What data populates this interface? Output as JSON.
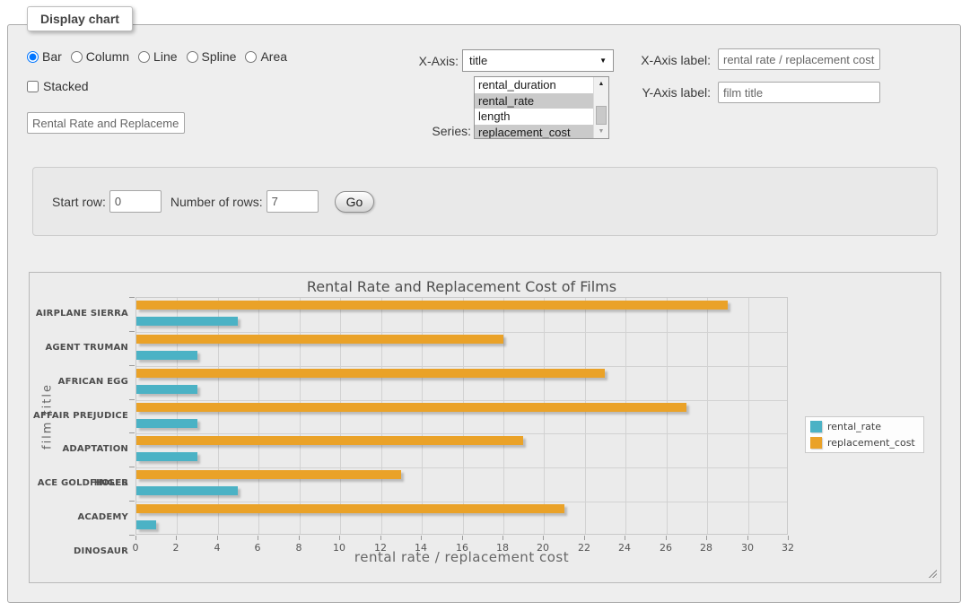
{
  "panel": {
    "legend": "Display chart"
  },
  "chart_type": {
    "options": [
      "Bar",
      "Column",
      "Line",
      "Spline",
      "Area"
    ],
    "selected": "Bar"
  },
  "stacked": {
    "label": "Stacked",
    "checked": false
  },
  "title_input": {
    "value": "Rental Rate and Replacement Cost of Films"
  },
  "x_axis_select": {
    "label": "X-Axis:",
    "selected": "title"
  },
  "series_select": {
    "label": "Series:",
    "options": [
      "rental_duration",
      "rental_rate",
      "length",
      "replacement_cost"
    ],
    "selected": [
      "rental_rate",
      "replacement_cost"
    ]
  },
  "x_axis_label_field": {
    "label": "X-Axis label:",
    "value": "rental rate / replacement cost"
  },
  "y_axis_label_field": {
    "label": "Y-Axis label:",
    "value": "film title"
  },
  "rows_form": {
    "start_row_label": "Start row:",
    "start_row_value": "0",
    "num_rows_label": "Number of rows:",
    "num_rows_value": "7",
    "go_label": "Go"
  },
  "chart_data": {
    "type": "bar",
    "orientation": "horizontal",
    "title": "Rental Rate and Replacement Cost of Films",
    "categories": [
      "AIRPLANE SIERRA",
      "AGENT TRUMAN",
      "AFRICAN EGG",
      "AFFAIR PREJUDICE",
      "ADAPTATION HOLES",
      "ACE GOLDFINGER",
      "ACADEMY DINOSAUR"
    ],
    "series": [
      {
        "name": "rental_rate",
        "color": "#4bb2c5",
        "values": [
          4.99,
          2.99,
          2.99,
          2.99,
          2.99,
          4.99,
          0.99
        ]
      },
      {
        "name": "replacement_cost",
        "color": "#eaa228",
        "values": [
          28.99,
          17.99,
          22.99,
          26.99,
          18.99,
          12.99,
          20.99
        ]
      }
    ],
    "xlabel": "rental rate / replacement cost",
    "ylabel": "film title",
    "xlim": [
      0,
      32
    ],
    "xticks": [
      0,
      2,
      4,
      6,
      8,
      10,
      12,
      14,
      16,
      18,
      20,
      22,
      24,
      26,
      28,
      30,
      32
    ],
    "grid": true,
    "legend_position": "right"
  }
}
